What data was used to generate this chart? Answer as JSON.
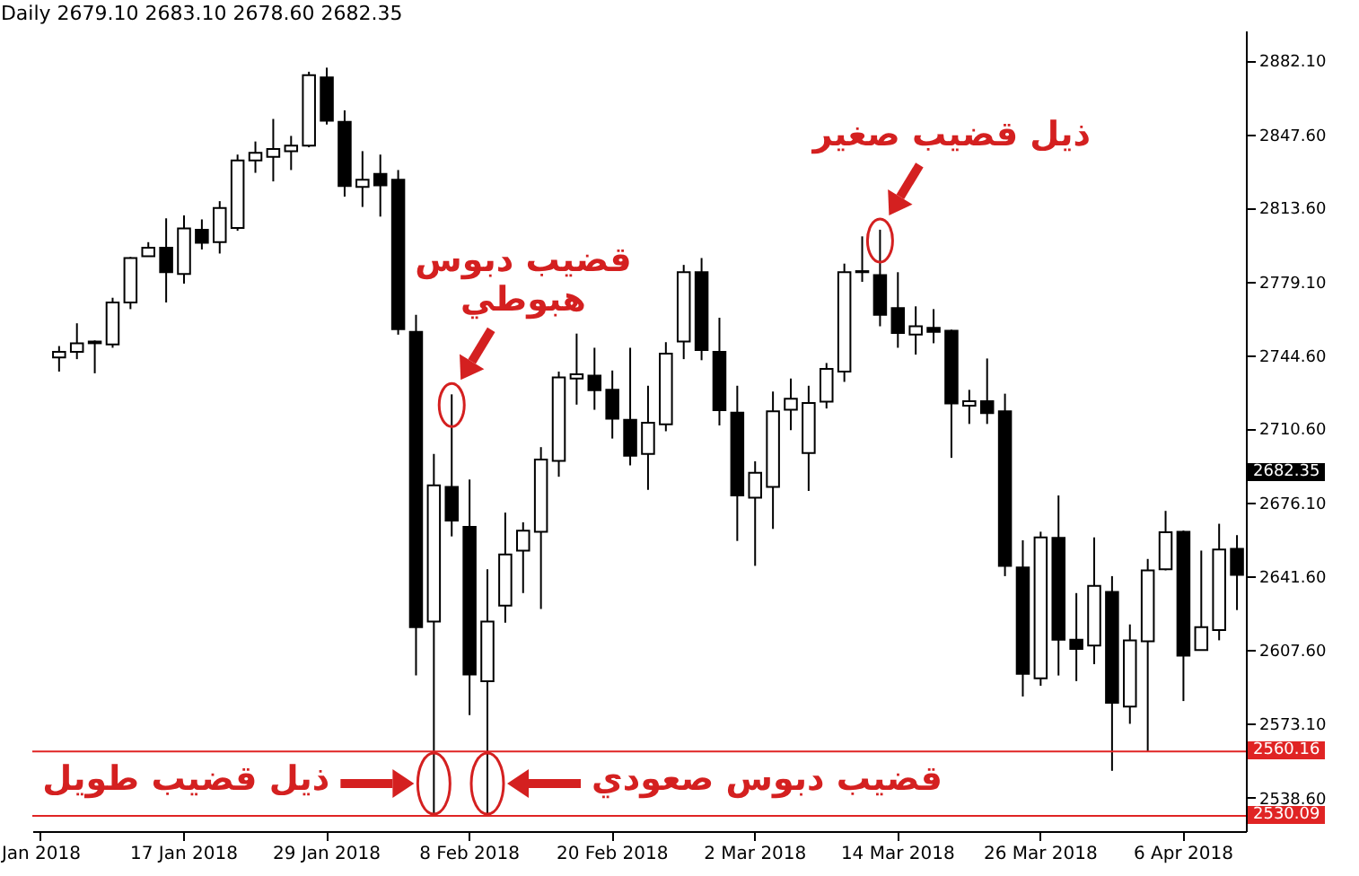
{
  "chart_data": {
    "type": "candlestick",
    "title": "Daily 2679.10 2683.10 2678.60 2682.35",
    "categories": [
      "Jan 2018",
      null,
      null,
      null,
      null,
      null,
      null,
      null,
      "17 Jan 2018",
      null,
      null,
      null,
      null,
      null,
      null,
      null,
      "29 Jan 2018",
      null,
      null,
      null,
      null,
      null,
      null,
      null,
      "8 Feb 2018",
      null,
      null,
      null,
      null,
      null,
      null,
      null,
      "20 Feb 2018",
      null,
      null,
      null,
      null,
      null,
      null,
      null,
      "2 Mar 2018",
      null,
      null,
      null,
      null,
      null,
      null,
      null,
      "14 Mar 2018",
      null,
      null,
      null,
      null,
      null,
      null,
      null,
      "26 Mar 2018",
      null,
      null,
      null,
      null,
      null,
      null,
      null,
      "6 Apr 2018",
      null,
      null,
      null
    ],
    "ohlc": [
      null,
      [
        2743.7,
        2749.0,
        2737.1,
        2746.3
      ],
      [
        2746.3,
        2759.6,
        2742.9,
        2750.3
      ],
      [
        2750.3,
        2751.6,
        2736.3,
        2751.1
      ],
      [
        2749.8,
        2771.5,
        2748.2,
        2769.3
      ],
      [
        2769.3,
        2790.5,
        2766.2,
        2790.0
      ],
      [
        2790.8,
        2797.4,
        2790.8,
        2794.8
      ],
      [
        2794.8,
        2808.5,
        2769.3,
        2783.4
      ],
      [
        2782.6,
        2809.9,
        2778.1,
        2803.8
      ],
      [
        2803.2,
        2808.0,
        2794.0,
        2797.1
      ],
      [
        2797.4,
        2816.5,
        2792.1,
        2813.3
      ],
      [
        2804.0,
        2838.2,
        2802.7,
        2835.5
      ],
      [
        2835.5,
        2844.3,
        2829.7,
        2839.0
      ],
      [
        2837.1,
        2854.8,
        2825.7,
        2840.8
      ],
      [
        2839.8,
        2846.9,
        2831.0,
        2842.4
      ],
      [
        2842.4,
        2876.8,
        2841.6,
        2875.2
      ],
      [
        2874.2,
        2878.7,
        2852.2,
        2854.0
      ],
      [
        2853.5,
        2858.8,
        2818.6,
        2823.6
      ],
      [
        2823.1,
        2839.8,
        2813.8,
        2826.5
      ],
      [
        2829.2,
        2838.2,
        2809.3,
        2823.9
      ],
      [
        2826.5,
        2831.0,
        2754.3,
        2756.9
      ],
      [
        2755.6,
        2763.5,
        2595.5,
        2618.0
      ],
      [
        2620.6,
        2698.7,
        2530.09,
        2684.1
      ],
      [
        2683.4,
        2726.5,
        2660.3,
        2667.7
      ],
      [
        2664.8,
        2686.8,
        2577.0,
        2596.0
      ],
      [
        2592.8,
        2645.0,
        2530.09,
        2620.6
      ],
      [
        2628.1,
        2671.4,
        2620.1,
        2651.9
      ],
      [
        2653.7,
        2666.9,
        2633.9,
        2663.0
      ],
      [
        2662.5,
        2701.9,
        2626.5,
        2696.1
      ],
      [
        2695.5,
        2737.1,
        2688.1,
        2734.4
      ],
      [
        2733.9,
        2754.8,
        2721.7,
        2735.8
      ],
      [
        2735.2,
        2748.2,
        2719.3,
        2728.4
      ],
      [
        2728.6,
        2737.6,
        2705.9,
        2715.1
      ],
      [
        2714.6,
        2748.2,
        2693.4,
        2697.9
      ],
      [
        2698.7,
        2730.5,
        2682.0,
        2713.3
      ],
      [
        2712.5,
        2750.8,
        2709.3,
        2745.5
      ],
      [
        2751.1,
        2786.8,
        2742.9,
        2783.4
      ],
      [
        2783.4,
        2790.0,
        2742.4,
        2747.1
      ],
      [
        2746.3,
        2762.2,
        2712.0,
        2719.1
      ],
      [
        2718.0,
        2730.5,
        2658.2,
        2679.4
      ],
      [
        2678.3,
        2695.3,
        2646.6,
        2690.0
      ],
      [
        2683.4,
        2727.8,
        2663.8,
        2718.6
      ],
      [
        2719.3,
        2733.9,
        2709.8,
        2724.4
      ],
      [
        2699.2,
        2730.5,
        2681.5,
        2722.5
      ],
      [
        2723.1,
        2741.1,
        2719.9,
        2738.4
      ],
      [
        2737.1,
        2787.4,
        2732.3,
        2783.4
      ],
      [
        2783.9,
        2800.1,
        2778.9,
        2783.4
      ],
      [
        2782.1,
        2803.2,
        2758.2,
        2763.5
      ],
      [
        2766.7,
        2783.4,
        2748.2,
        2755.1
      ],
      [
        2754.3,
        2767.5,
        2745.0,
        2758.2
      ],
      [
        2757.5,
        2766.2,
        2750.3,
        2755.6
      ],
      [
        2756.1,
        2756.6,
        2696.9,
        2722.3
      ],
      [
        2721.2,
        2728.6,
        2712.7,
        2723.3
      ],
      [
        2723.3,
        2743.2,
        2712.7,
        2717.8
      ],
      [
        2718.6,
        2726.8,
        2641.8,
        2646.6
      ],
      [
        2645.8,
        2658.5,
        2585.7,
        2596.3
      ],
      [
        2594.2,
        2662.5,
        2590.7,
        2659.8
      ],
      [
        2659.6,
        2679.4,
        2595.5,
        2612.2
      ],
      [
        2612.2,
        2633.9,
        2592.9,
        2607.9
      ],
      [
        2609.5,
        2659.8,
        2600.8,
        2637.3
      ],
      [
        2634.4,
        2641.8,
        2551.1,
        2582.8
      ],
      [
        2581.0,
        2619.3,
        2573.0,
        2611.9
      ],
      [
        2611.4,
        2649.8,
        2560.16,
        2644.5
      ],
      [
        2645.0,
        2672.2,
        2644.5,
        2662.2
      ],
      [
        2662.5,
        2663.0,
        2583.6,
        2604.8
      ],
      [
        2607.4,
        2653.7,
        2607.4,
        2618.0
      ],
      [
        2616.7,
        2666.2,
        2611.9,
        2654.2
      ],
      [
        2654.5,
        2660.9,
        2626.0,
        2642.4
      ]
    ],
    "ylim": [
      2523,
      2896
    ],
    "yticks": [
      {
        "value": 2882.1,
        "label": "2882.10"
      },
      {
        "value": 2847.6,
        "label": "2847.60"
      },
      {
        "value": 2813.6,
        "label": "2813.60"
      },
      {
        "value": 2779.1,
        "label": "2779.10"
      },
      {
        "value": 2744.6,
        "label": "2744.60"
      },
      {
        "value": 2710.6,
        "label": "2710.60"
      },
      {
        "value": 2676.1,
        "label": "2676.10"
      },
      {
        "value": 2641.6,
        "label": "2641.60"
      },
      {
        "value": 2607.6,
        "label": "2607.60"
      },
      {
        "value": 2573.1,
        "label": "2573.10"
      },
      {
        "value": 2538.6,
        "label": "2538.60"
      }
    ],
    "ref_lines": [
      {
        "axis": "y",
        "value": 2560.16,
        "label": "2560.16",
        "color": "#e02424"
      },
      {
        "axis": "y",
        "value": 2530.09,
        "label": "2530.09",
        "color": "#e02424"
      }
    ],
    "annotations": [
      "ذيل قضيب صغير",
      "قضيب دبوس\nهبوطي",
      {
        "text": "ذيل قضيب طويل",
        "y": 2530.09
      },
      {
        "text": "قضيب دبوس صعودي",
        "y": 2530.09
      },
      "2682.35"
    ]
  }
}
